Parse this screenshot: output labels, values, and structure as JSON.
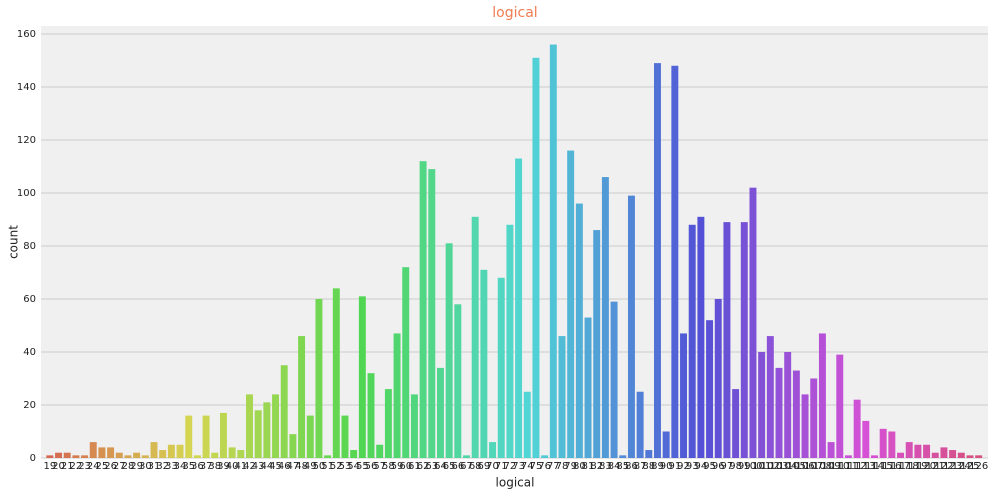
{
  "chart_data": {
    "type": "bar",
    "title": "logical",
    "xlabel": "logical",
    "ylabel": "count",
    "categories": [
      19,
      20,
      21,
      22,
      23,
      24,
      25,
      26,
      27,
      28,
      29,
      30,
      31,
      32,
      33,
      34,
      35,
      36,
      37,
      38,
      39,
      40,
      41,
      42,
      43,
      44,
      45,
      46,
      47,
      48,
      49,
      50,
      51,
      52,
      53,
      54,
      55,
      56,
      57,
      58,
      59,
      60,
      61,
      62,
      63,
      64,
      65,
      66,
      67,
      68,
      69,
      70,
      71,
      72,
      73,
      74,
      75,
      76,
      77,
      78,
      79,
      80,
      81,
      82,
      83,
      84,
      85,
      86,
      87,
      88,
      89,
      90,
      91,
      92,
      93,
      94,
      95,
      96,
      97,
      98,
      99,
      100,
      101,
      102,
      103,
      104,
      105,
      106,
      107,
      108,
      109,
      110,
      111,
      112,
      113,
      114,
      115,
      116,
      117,
      118,
      119,
      120,
      121,
      122,
      123,
      124,
      125,
      126
    ],
    "values": [
      1,
      2,
      2,
      1,
      1,
      6,
      4,
      4,
      2,
      1,
      2,
      1,
      6,
      3,
      5,
      5,
      16,
      1,
      16,
      2,
      17,
      4,
      3,
      24,
      18,
      21,
      24,
      35,
      9,
      46,
      16,
      60,
      1,
      64,
      16,
      3,
      61,
      32,
      5,
      26,
      47,
      72,
      24,
      112,
      109,
      34,
      81,
      58,
      1,
      91,
      71,
      6,
      68,
      88,
      113,
      25,
      151,
      1,
      156,
      46,
      116,
      96,
      53,
      86,
      106,
      59,
      1,
      99,
      25,
      3,
      149,
      10,
      148,
      47,
      88,
      91,
      52,
      60,
      89,
      26,
      89,
      102,
      40,
      46,
      34,
      40,
      33,
      24,
      30,
      47,
      6,
      39,
      1,
      22,
      14,
      1,
      11,
      10,
      2,
      6,
      5,
      5,
      2,
      4,
      3,
      2,
      1,
      1
    ],
    "palette": "husl",
    "ylim": [
      0,
      163
    ],
    "yticks": [
      0,
      20,
      40,
      60,
      80,
      100,
      120,
      140,
      160
    ],
    "grid": true
  }
}
